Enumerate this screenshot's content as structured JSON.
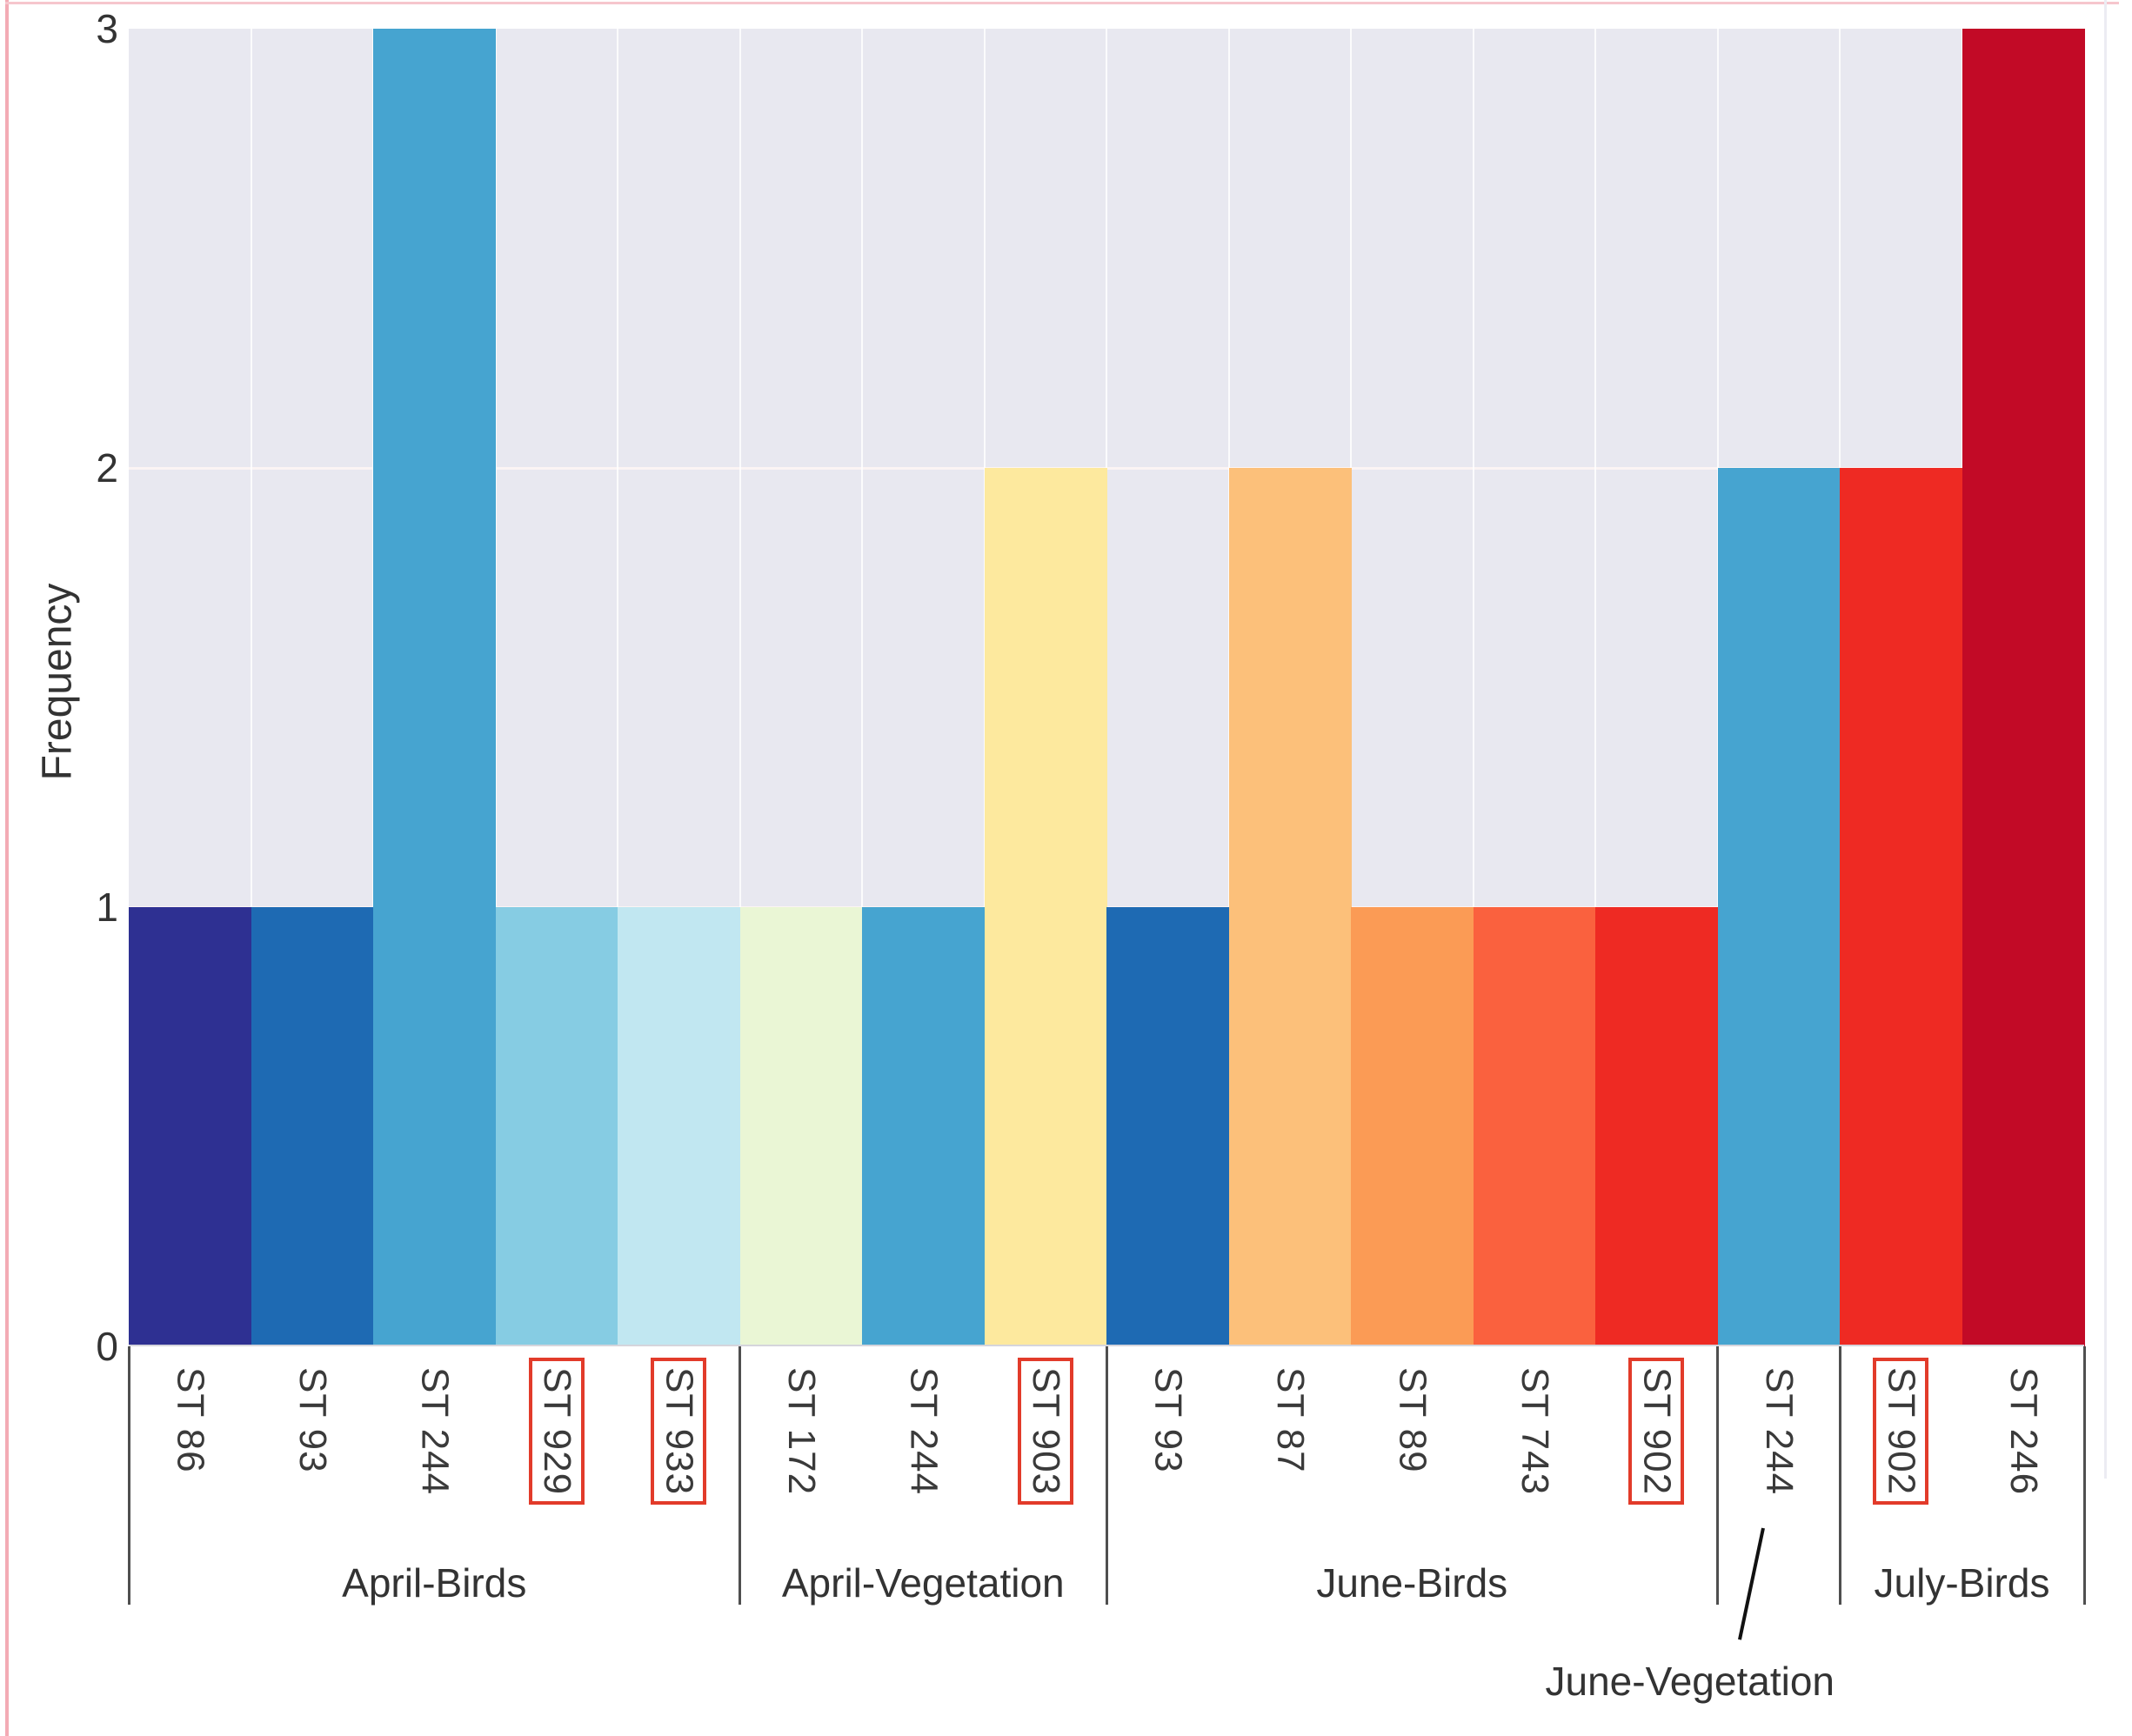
{
  "style": {
    "page_bg": "#ffffff",
    "plot_bg": "#e8e8f0",
    "grid_color": "#fbf4f4",
    "column_separator": "rgba(255,255,255,0.8)",
    "divider_color": "#4f4f4f",
    "highlight_box_color": "#e23b2a",
    "text_color": "#333333",
    "axis_line_color": "#d5d5dc",
    "edge_accent_left": "#f3abb5",
    "edge_accent_top": "#f6c6cd",
    "figure_border_right": "#ececf3",
    "leader_line_color": "#111111"
  },
  "chart_data": {
    "type": "bar",
    "title": "",
    "xlabel": "",
    "ylabel": "Frequency",
    "ylim": [
      0,
      3
    ],
    "yticks": [
      3,
      2,
      1,
      0
    ],
    "grid": true,
    "legend": false,
    "categories": [
      "ST 86",
      "ST 93",
      "ST 244",
      "ST 929",
      "ST 933",
      "ST 172",
      "ST 244",
      "ST 903",
      "ST 93",
      "ST 87",
      "ST 89",
      "ST 743",
      "ST 902",
      "ST 244",
      "ST 902",
      "ST 246"
    ],
    "values": [
      1,
      1,
      3,
      1,
      1,
      1,
      1,
      2,
      1,
      2,
      1,
      1,
      1,
      2,
      2,
      3
    ],
    "bar_colors": [
      "#2e3092",
      "#1e6ab3",
      "#46a4d0",
      "#86cce3",
      "#c1e7f1",
      "#eaf6d5",
      "#46a4d0",
      "#fde99e",
      "#1e6ab3",
      "#fcc07a",
      "#fb9b55",
      "#fa613e",
      "#ee2a23",
      "#46a4d0",
      "#ee2a23",
      "#c20a26"
    ],
    "boxed_labels": [
      false,
      false,
      false,
      true,
      true,
      false,
      false,
      true,
      false,
      false,
      false,
      false,
      true,
      false,
      true,
      false
    ],
    "groups": [
      {
        "label": "April-Birds",
        "count": 5,
        "offset_label": false
      },
      {
        "label": "April-Vegetation",
        "count": 3,
        "offset_label": false
      },
      {
        "label": "June-Birds",
        "count": 5,
        "offset_label": false
      },
      {
        "label": "June-Vegetation",
        "count": 1,
        "offset_label": true
      },
      {
        "label": "July-Birds",
        "count": 2,
        "offset_label": false
      }
    ]
  }
}
